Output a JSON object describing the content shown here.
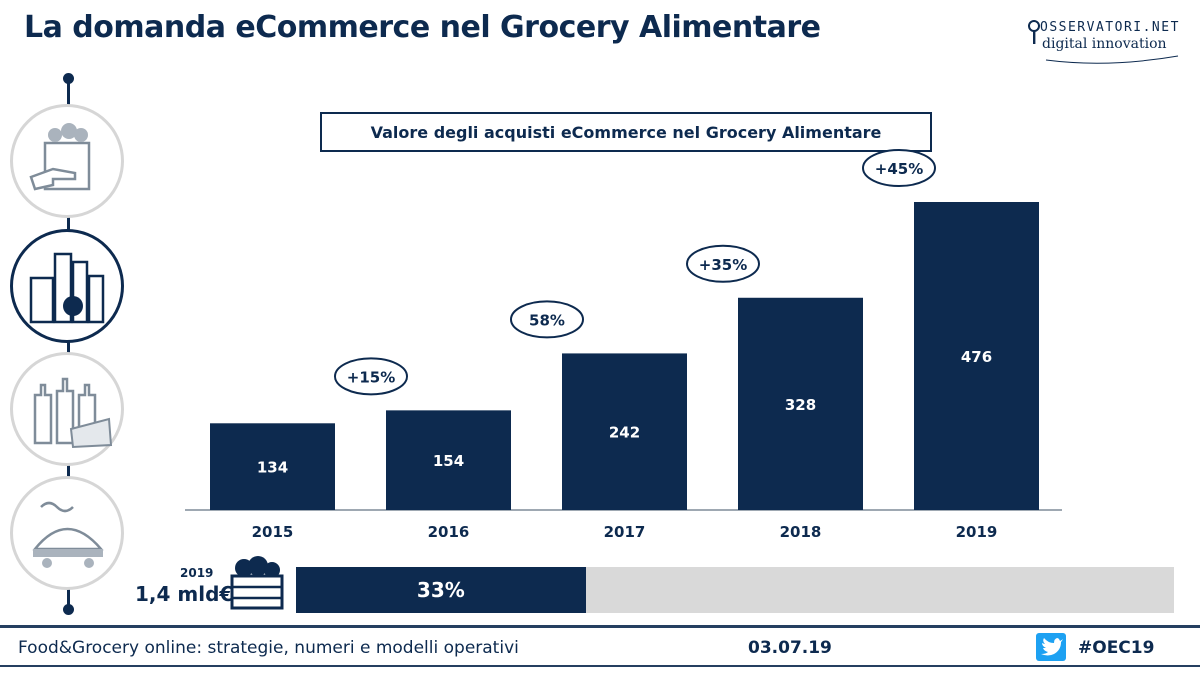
{
  "header": {
    "title": "La domanda eCommerce nel Grocery Alimentare",
    "logo_line1": "OSSERVATORI.NET",
    "logo_line2": "digital innovation"
  },
  "sidebar": {
    "categories": [
      {
        "name": "grocery-bag-icon",
        "active": false
      },
      {
        "name": "grocery-alimentare-icon",
        "active": true
      },
      {
        "name": "wine-cheese-icon",
        "active": false
      },
      {
        "name": "food-delivery-icon",
        "active": false
      }
    ]
  },
  "chart_data": {
    "type": "bar",
    "title": "Valore degli acquisti eCommerce nel Grocery Alimentare",
    "categories": [
      "2015",
      "2016",
      "2017",
      "2018",
      "2019"
    ],
    "values": [
      134,
      154,
      242,
      328,
      476
    ],
    "growth_labels": [
      "",
      "+15%",
      "58%",
      "+35%",
      "+45%"
    ],
    "ylim": [
      0,
      476
    ],
    "xlabel": "",
    "ylabel": ""
  },
  "share": {
    "year": "2019",
    "total": "1,4 mld€",
    "percent_label": "33%",
    "fraction": 0.33
  },
  "footer": {
    "text": "Food&Grocery online: strategie, numeri e modelli operativi",
    "date": "03.07.19",
    "hashtag": "#OEC19"
  },
  "colors": {
    "navy": "#0d2a4f",
    "track": "#d9d9d9",
    "twitter": "#1da1f2"
  }
}
